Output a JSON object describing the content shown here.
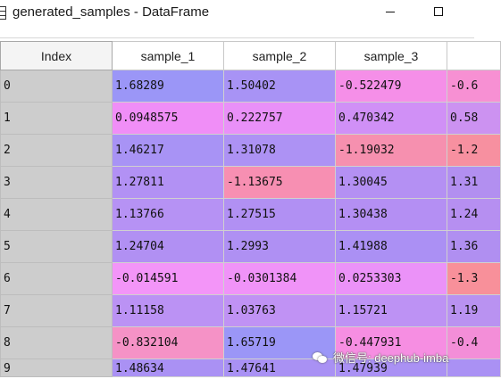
{
  "window": {
    "title": "generated_samples - DataFrame"
  },
  "table": {
    "columns": [
      "Index",
      "sample_1",
      "sample_2",
      "sample_3",
      ""
    ],
    "rows": [
      {
        "index": "0",
        "cells": [
          "1.68289",
          "1.50402",
          "-0.522479",
          "-0.6"
        ]
      },
      {
        "index": "1",
        "cells": [
          "0.0948575",
          "0.222757",
          "0.470342",
          "0.58"
        ]
      },
      {
        "index": "2",
        "cells": [
          "1.46217",
          "1.31078",
          "-1.19032",
          "-1.2"
        ]
      },
      {
        "index": "3",
        "cells": [
          "1.27811",
          "-1.13675",
          "1.30045",
          "1.31"
        ]
      },
      {
        "index": "4",
        "cells": [
          "1.13766",
          "1.27515",
          "1.30438",
          "1.24"
        ]
      },
      {
        "index": "5",
        "cells": [
          "1.24704",
          "1.2993",
          "1.41988",
          "1.36"
        ]
      },
      {
        "index": "6",
        "cells": [
          "-0.014591",
          "-0.0301384",
          "0.0253303",
          "-1.3"
        ]
      },
      {
        "index": "7",
        "cells": [
          "1.11158",
          "1.03763",
          "1.15721",
          "1.19"
        ]
      },
      {
        "index": "8",
        "cells": [
          "-0.832104",
          "1.65719",
          "-0.447931",
          "-0.4"
        ]
      },
      {
        "index": "9",
        "cells": [
          "1.48634",
          "1.47641",
          "1.47939",
          ""
        ]
      }
    ],
    "cell_colors": [
      [
        "#9b96f7",
        "#a893f5",
        "#f58fe8",
        "#f790d3"
      ],
      [
        "#f08ef7",
        "#e990f8",
        "#d090f6",
        "#cc92f1"
      ],
      [
        "#a893f5",
        "#ad92f4",
        "#f690af",
        "#f790a0"
      ],
      [
        "#b291f4",
        "#f78fb2",
        "#b490f3",
        "#b28ff0"
      ],
      [
        "#b692f4",
        "#b190f3",
        "#b48ff3",
        "#b68ff1"
      ],
      [
        "#b190f3",
        "#af90f3",
        "#ab90f4",
        "#b08ff1"
      ],
      [
        "#f395f8",
        "#f093f8",
        "#eb92f8",
        "#f8909a"
      ],
      [
        "#bb92f4",
        "#c092f4",
        "#bd92f4",
        "#b992f1"
      ],
      [
        "#f592c6",
        "#9b96f7",
        "#f68ee2",
        "#f38ed8"
      ],
      [
        "#aa91f4",
        "#a991f4",
        "#aa91f4",
        "#aa91f4"
      ]
    ]
  },
  "watermark": {
    "text": "微信号: deephub-imba"
  }
}
